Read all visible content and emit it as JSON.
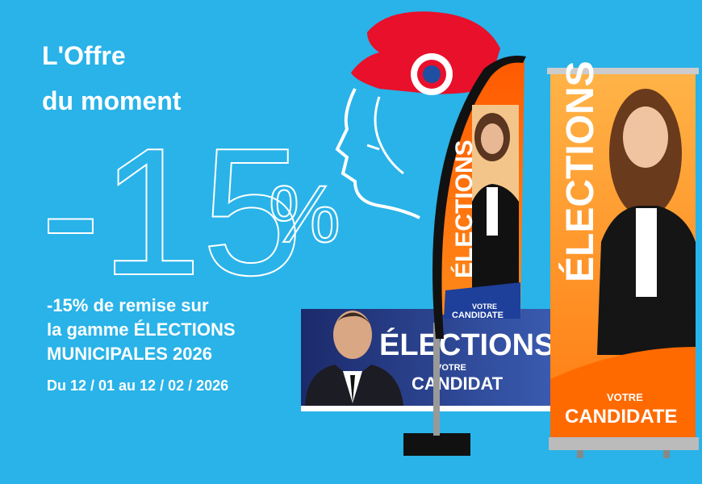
{
  "headline": {
    "line1": "L'Offre",
    "line2": "du moment"
  },
  "discount": {
    "amount": "-15",
    "unit": "%"
  },
  "description": {
    "lines": [
      "-15% de remise sur",
      "la gamme ÉLECTIONS",
      "MUNICIPALES 2026"
    ],
    "dates": "Du 12 / 01 au 12 / 02 / 2026"
  },
  "products": {
    "flag": {
      "title": "ÉLECTIONS",
      "label": "VOTRE",
      "name": "CANDIDATE"
    },
    "banner": {
      "title": "ÉLECTIONS",
      "label": "VOTRE",
      "name": "CANDIDAT"
    },
    "rollup": {
      "title": "ÉLECTIONS",
      "label": "VOTRE",
      "name": "CANDIDATE"
    }
  }
}
